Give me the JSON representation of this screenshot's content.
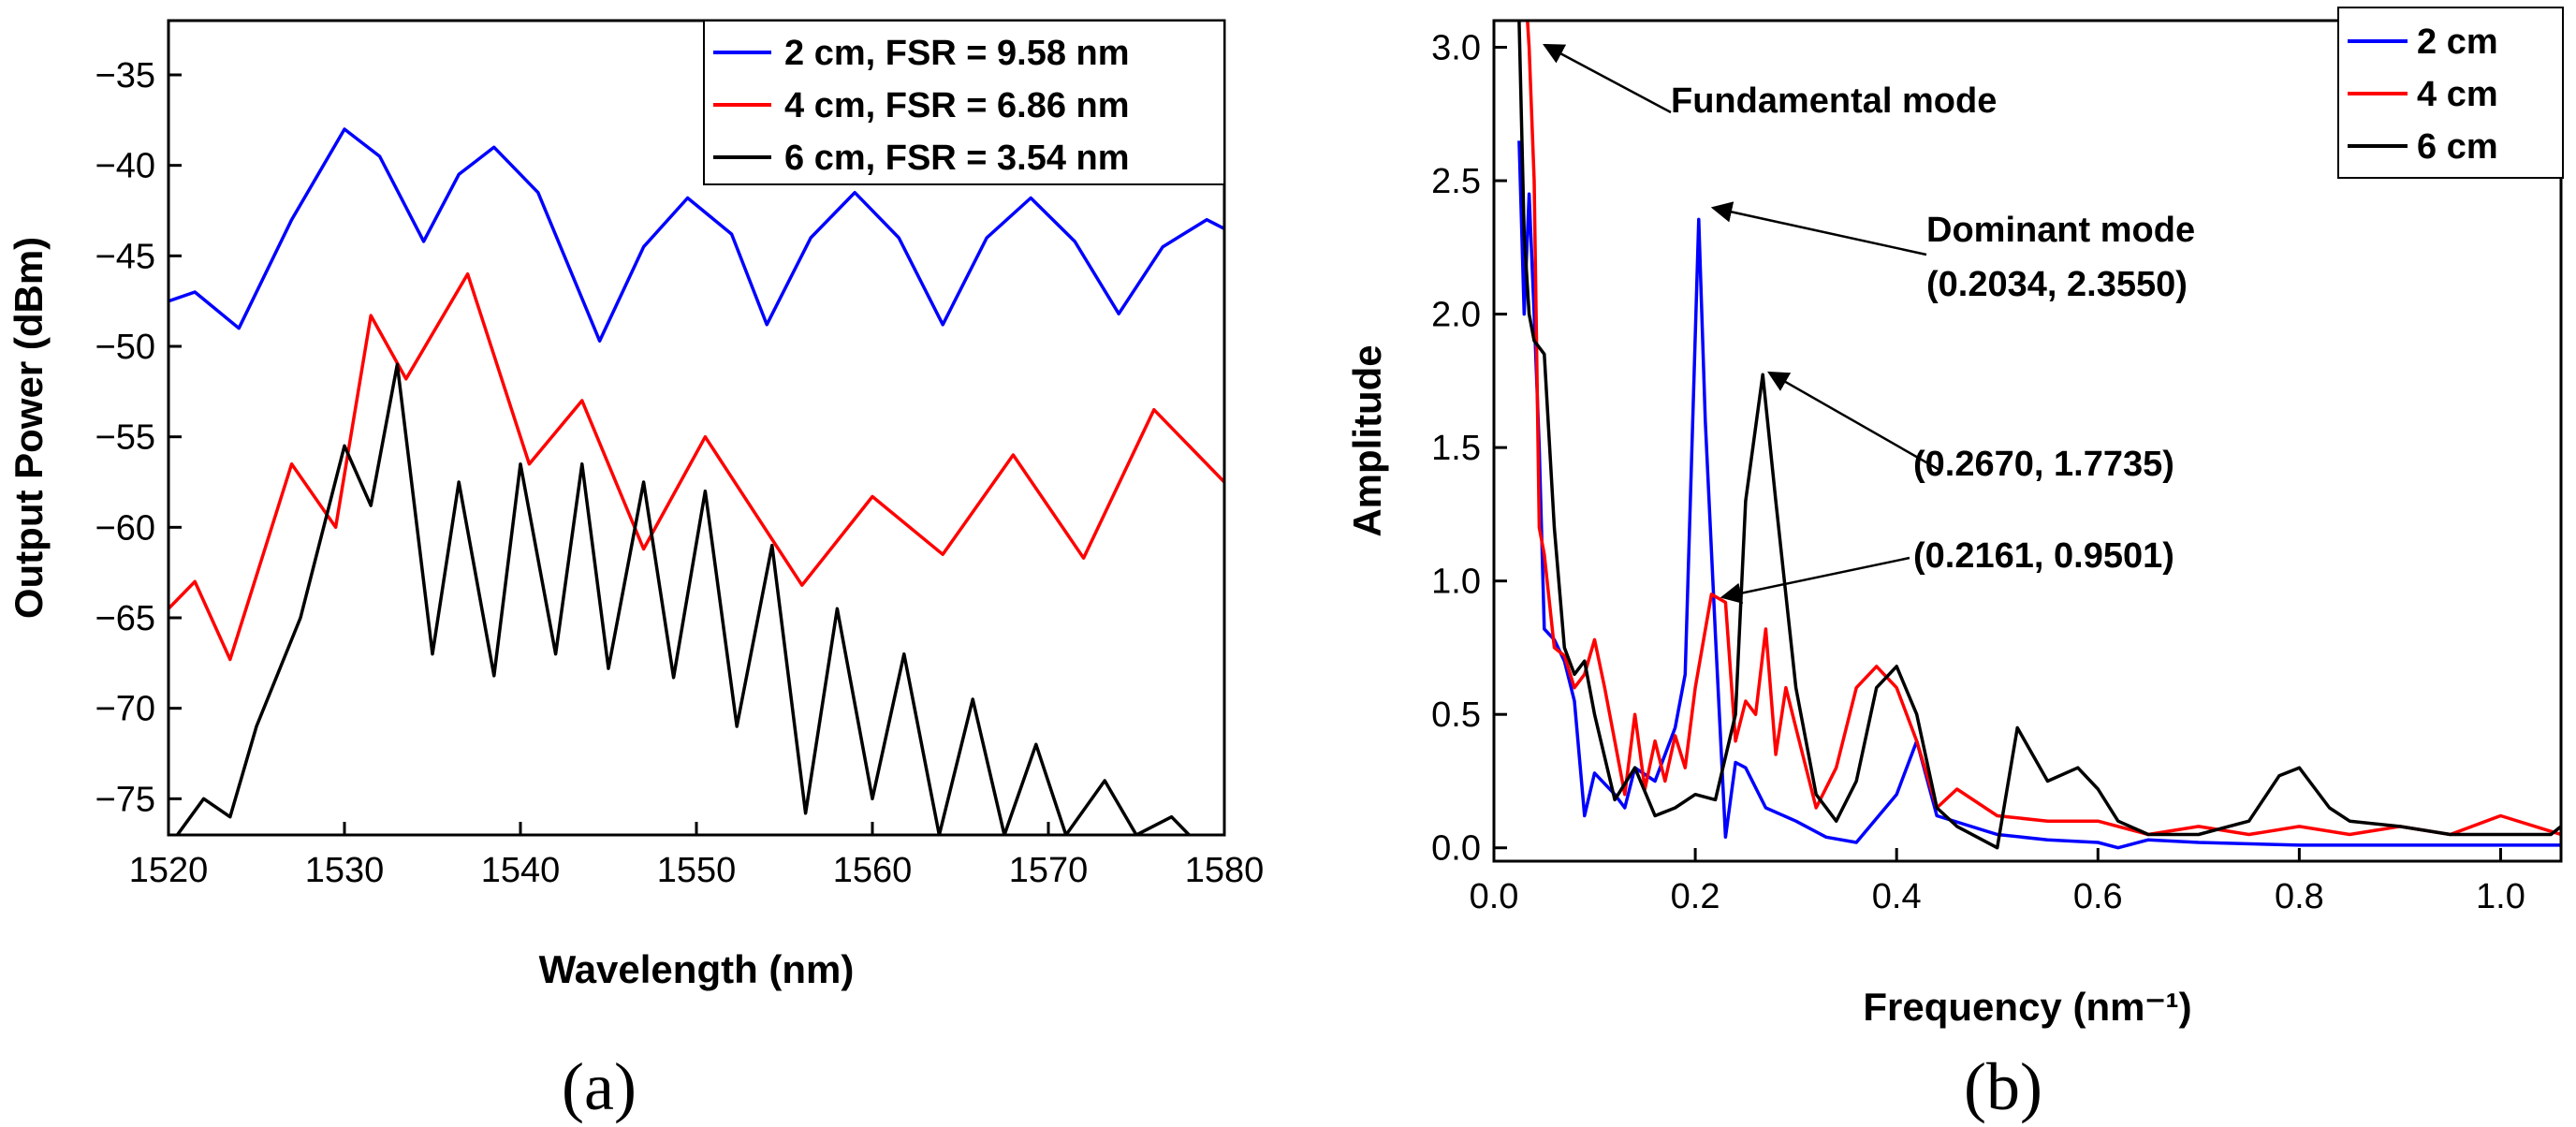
{
  "chart_data": [
    {
      "type": "line",
      "caption": "(a)",
      "xlabel": "Wavelength (nm)",
      "ylabel": "Output Power (dBm)",
      "xlim": [
        1520,
        1580
      ],
      "ylim": [
        -77,
        -32
      ],
      "xticks": [
        1520,
        1530,
        1540,
        1550,
        1560,
        1570,
        1580
      ],
      "yticks": [
        -35,
        -40,
        -45,
        -50,
        -55,
        -60,
        -65,
        -70,
        -75
      ],
      "legend_position": "top-right",
      "series": [
        {
          "name": "2 cm, FSR = 9.58 nm",
          "color": "#0000ff",
          "x": [
            1520,
            1521.5,
            1524,
            1527,
            1530,
            1532,
            1534.5,
            1536.5,
            1538.5,
            1541,
            1544.5,
            1547,
            1549.5,
            1552,
            1554,
            1556.5,
            1559,
            1561.5,
            1564,
            1566.5,
            1569,
            1571.5,
            1574,
            1576.5,
            1579,
            1580
          ],
          "y": [
            -47.5,
            -47,
            -49,
            -43,
            -38,
            -39.5,
            -44.2,
            -40.5,
            -39,
            -41.5,
            -49.7,
            -44.5,
            -41.8,
            -43.8,
            -48.8,
            -44,
            -41.5,
            -44,
            -48.8,
            -44,
            -41.8,
            -44.2,
            -48.2,
            -44.5,
            -43,
            -43.5
          ]
        },
        {
          "name": "4 cm, FSR = 6.86 nm",
          "color": "#ff0000",
          "x": [
            1520,
            1521.5,
            1523.5,
            1527,
            1529.5,
            1531.5,
            1533.5,
            1537,
            1540.5,
            1543.5,
            1547,
            1550.5,
            1556,
            1560,
            1564,
            1568,
            1572,
            1576,
            1580
          ],
          "y": [
            -64.5,
            -63,
            -67.3,
            -56.5,
            -60,
            -48.3,
            -51.8,
            -46,
            -56.5,
            -53,
            -61.2,
            -55,
            -63.2,
            -58.3,
            -61.5,
            -56,
            -61.7,
            -53.5,
            -57.5
          ]
        },
        {
          "name": "6 cm, FSR = 3.54 nm",
          "color": "#000000",
          "x": [
            1520.5,
            1522,
            1523.5,
            1525,
            1527.5,
            1530,
            1531.5,
            1533,
            1535,
            1536.5,
            1538.5,
            1540,
            1542,
            1543.5,
            1545,
            1547,
            1548.7,
            1550.5,
            1552.3,
            1554.3,
            1556.2,
            1558,
            1560,
            1561.8,
            1563.8,
            1565.7,
            1567.5,
            1569.3,
            1571,
            1573.2,
            1575,
            1577,
            1578
          ],
          "y": [
            -77,
            -75,
            -76,
            -71,
            -65,
            -55.5,
            -58.8,
            -51,
            -67,
            -57.5,
            -68.2,
            -56.5,
            -67,
            -56.5,
            -67.8,
            -57.5,
            -68.3,
            -58,
            -71,
            -61,
            -75.8,
            -64.5,
            -75,
            -67,
            -77,
            -69.5,
            -77,
            -72,
            -77,
            -74,
            -77,
            -76,
            -77
          ]
        }
      ]
    },
    {
      "type": "line",
      "caption": "(b)",
      "xlabel": "Frequency (nm⁻¹)",
      "ylabel": "Amplitude",
      "xlim": [
        0,
        1.06
      ],
      "ylim": [
        -0.05,
        3.1
      ],
      "xticks": [
        0.0,
        0.2,
        0.4,
        0.6,
        0.8,
        1.0
      ],
      "yticks": [
        0.0,
        0.5,
        1.0,
        1.5,
        2.0,
        2.5,
        3.0
      ],
      "legend_position": "top-right",
      "series": [
        {
          "name": "2 cm",
          "color": "#0000ff",
          "x": [
            0.025,
            0.03,
            0.035,
            0.04,
            0.045,
            0.05,
            0.06,
            0.07,
            0.08,
            0.09,
            0.1,
            0.12,
            0.13,
            0.14,
            0.16,
            0.18,
            0.19,
            0.2034,
            0.21,
            0.22,
            0.23,
            0.24,
            0.25,
            0.27,
            0.3,
            0.33,
            0.36,
            0.4,
            0.42,
            0.44,
            0.5,
            0.55,
            0.6,
            0.62,
            0.65,
            0.7,
            0.8,
            0.9,
            1.0,
            1.06
          ],
          "y": [
            2.65,
            2.0,
            2.45,
            2.0,
            1.5,
            0.82,
            0.78,
            0.7,
            0.55,
            0.12,
            0.28,
            0.2,
            0.15,
            0.3,
            0.25,
            0.45,
            0.65,
            2.355,
            1.6,
            0.8,
            0.04,
            0.32,
            0.3,
            0.15,
            0.1,
            0.04,
            0.02,
            0.2,
            0.4,
            0.12,
            0.05,
            0.03,
            0.02,
            0.0,
            0.03,
            0.02,
            0.01,
            0.01,
            0.01,
            0.01
          ]
        },
        {
          "name": "4 cm",
          "color": "#ff0000",
          "x": [
            0.03,
            0.035,
            0.04,
            0.045,
            0.05,
            0.06,
            0.07,
            0.08,
            0.09,
            0.1,
            0.11,
            0.12,
            0.13,
            0.14,
            0.15,
            0.16,
            0.17,
            0.18,
            0.19,
            0.2,
            0.2161,
            0.23,
            0.24,
            0.25,
            0.26,
            0.27,
            0.28,
            0.29,
            0.3,
            0.32,
            0.34,
            0.36,
            0.38,
            0.4,
            0.42,
            0.44,
            0.46,
            0.5,
            0.55,
            0.6,
            0.65,
            0.7,
            0.75,
            0.8,
            0.85,
            0.9,
            0.95,
            1.0,
            1.06
          ],
          "y": [
            3.3,
            3.0,
            2.5,
            1.2,
            1.1,
            0.75,
            0.72,
            0.6,
            0.65,
            0.78,
            0.6,
            0.4,
            0.2,
            0.5,
            0.22,
            0.4,
            0.25,
            0.42,
            0.3,
            0.6,
            0.95,
            0.92,
            0.4,
            0.55,
            0.5,
            0.82,
            0.35,
            0.6,
            0.45,
            0.15,
            0.3,
            0.6,
            0.68,
            0.6,
            0.4,
            0.15,
            0.22,
            0.12,
            0.1,
            0.1,
            0.05,
            0.08,
            0.05,
            0.08,
            0.05,
            0.08,
            0.05,
            0.12,
            0.05
          ]
        },
        {
          "name": "6 cm",
          "color": "#000000",
          "x": [
            0.025,
            0.03,
            0.035,
            0.04,
            0.05,
            0.06,
            0.07,
            0.08,
            0.09,
            0.1,
            0.12,
            0.14,
            0.16,
            0.18,
            0.2,
            0.22,
            0.24,
            0.25,
            0.267,
            0.28,
            0.3,
            0.32,
            0.34,
            0.36,
            0.38,
            0.4,
            0.42,
            0.44,
            0.46,
            0.5,
            0.52,
            0.55,
            0.58,
            0.6,
            0.62,
            0.65,
            0.7,
            0.75,
            0.78,
            0.8,
            0.83,
            0.85,
            0.9,
            0.95,
            1.0,
            1.05,
            1.06
          ],
          "y": [
            3.1,
            2.3,
            2.0,
            1.9,
            1.85,
            1.2,
            0.75,
            0.65,
            0.7,
            0.5,
            0.18,
            0.3,
            0.12,
            0.15,
            0.2,
            0.18,
            0.5,
            1.3,
            1.7735,
            1.3,
            0.6,
            0.2,
            0.1,
            0.25,
            0.6,
            0.68,
            0.5,
            0.15,
            0.08,
            0.0,
            0.45,
            0.25,
            0.3,
            0.22,
            0.1,
            0.05,
            0.05,
            0.1,
            0.27,
            0.3,
            0.15,
            0.1,
            0.08,
            0.05,
            0.05,
            0.05,
            0.08
          ]
        }
      ],
      "annotations": [
        {
          "text": "Fundamental mode",
          "x": 0.045,
          "y": 3.0
        },
        {
          "text": "Dominant mode",
          "text2": "(0.2034, 2.3550)",
          "x": 0.2034,
          "y": 2.355
        },
        {
          "text": "(0.2670, 1.7735)",
          "x": 0.267,
          "y": 1.7735
        },
        {
          "text": "(0.2161, 0.9501)",
          "x": 0.2161,
          "y": 0.9501
        }
      ]
    }
  ]
}
